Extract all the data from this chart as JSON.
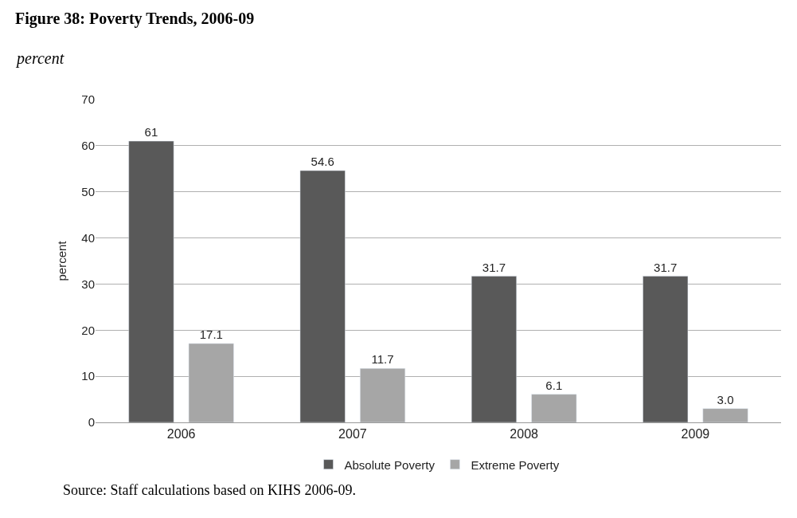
{
  "chart_data": {
    "type": "bar",
    "title": "Figure 38: Poverty Trends, 2006-09",
    "subtitle": "percent",
    "ylabel": "percent",
    "categories": [
      "2006",
      "2007",
      "2008",
      "2009"
    ],
    "series": [
      {
        "name": "Absolute Poverty",
        "color": "#595959",
        "values": [
          61,
          54.6,
          31.7,
          31.7
        ],
        "value_labels": [
          "61",
          "54.6",
          "31.7",
          "31.7"
        ]
      },
      {
        "name": "Extreme Poverty",
        "color": "#a6a6a6",
        "values": [
          17.1,
          11.7,
          6.1,
          3.0
        ],
        "value_labels": [
          "17.1",
          "11.7",
          "6.1",
          "3.0"
        ]
      }
    ],
    "ylim": [
      0,
      70
    ],
    "yticks": [
      0,
      10,
      20,
      30,
      40,
      50,
      60,
      70
    ],
    "grid": "y",
    "legend": "bottom",
    "annotations": [
      "Source: Staff calculations based on KIHS 2006-09."
    ]
  }
}
